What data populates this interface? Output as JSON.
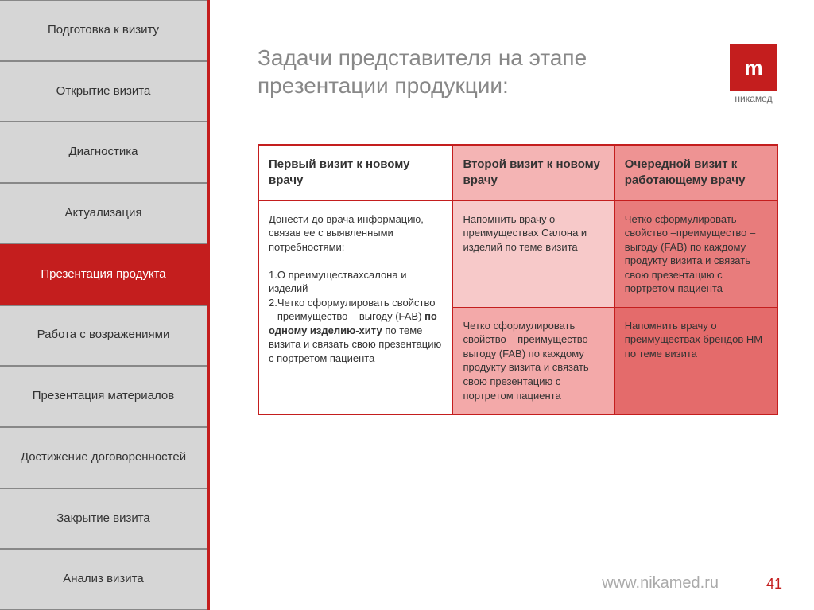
{
  "sidebar": {
    "items": [
      {
        "label": "Подготовка к визиту",
        "active": false
      },
      {
        "label": "Открытие визита",
        "active": false
      },
      {
        "label": "Диагностика",
        "active": false
      },
      {
        "label": "Актуализация",
        "active": false
      },
      {
        "label": "Презентация продукта",
        "active": true
      },
      {
        "label": "Работа с возражениями",
        "active": false
      },
      {
        "label": "Презентация материалов",
        "active": false
      },
      {
        "label": "Достижение договоренностей",
        "active": false
      },
      {
        "label": "Закрытие визита",
        "active": false
      },
      {
        "label": "Анализ визита",
        "active": false
      }
    ]
  },
  "header": {
    "title": "Задачи представителя на этапе презентации продукции:"
  },
  "logo": {
    "mark": "m",
    "name": "никамед"
  },
  "table": {
    "type": "table",
    "columns": 3,
    "header_bg_colors": [
      "#ffffff",
      "#f4b4b4",
      "#ee9393"
    ],
    "cell_bg_colors": {
      "col0": "#ffffff",
      "row1_col1": "#f7c9c9",
      "row1_col2": "#e87c7c",
      "row2_col1": "#f3a9a9",
      "row2_col2": "#e46b6b"
    },
    "border_color": "#c41e1e",
    "header_fontsize": 15,
    "cell_fontsize": 13,
    "headers": [
      "Первый визит к новому врачу",
      "Второй визит к новому врачу",
      "Очередной визит к работающему врачу"
    ],
    "col0_rowspan_text_pre": "Донести до врача информацию, связав ее с выявленными потребностями:\n\n1.О преимуществахсалона и изделий\n2.Четко сформулировать свойство – преимущество – выгоду (FAB) ",
    "col0_rowspan_bold": "по одному изделию-хиту",
    "col0_rowspan_text_post": " по теме визита и связать свою презентацию с портретом пациента",
    "row1": {
      "col1": "Напомнить врачу о преимуществах Салона и изделий по теме визита",
      "col2": "Четко сформулировать свойство –преимущество – выгоду (FAB) по каждому продукту визита и связать свою презентацию с портретом пациента"
    },
    "row2": {
      "col1": "Четко сформулировать свойство – преимущество – выгоду (FAB) по каждому продукту визита и связать свою презентацию с портретом пациента",
      "col2": "Напомнить врачу о преимуществах брендов НМ по теме визита"
    }
  },
  "footer": {
    "url": "www.nikamed.ru",
    "page": "41"
  },
  "colors": {
    "brand_red": "#c41e1e",
    "sidebar_grey": "#d6d6d6",
    "title_grey": "#888888"
  }
}
